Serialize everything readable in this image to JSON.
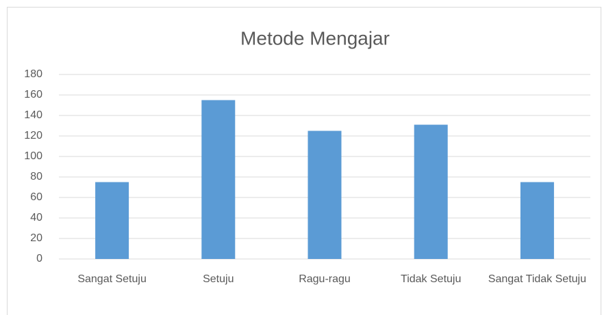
{
  "chart_data": {
    "type": "bar",
    "title": "Metode Mengajar",
    "categories": [
      "Sangat Setuju",
      "Setuju",
      "Ragu-ragu",
      "Tidak Setuju",
      "Sangat Tidak Setuju"
    ],
    "values": [
      75,
      155,
      125,
      131,
      75
    ],
    "color": "#5b9bd5",
    "ylim": [
      0,
      180
    ],
    "yticks": [
      0,
      20,
      40,
      60,
      80,
      100,
      120,
      140,
      160,
      180
    ],
    "grid": true
  }
}
